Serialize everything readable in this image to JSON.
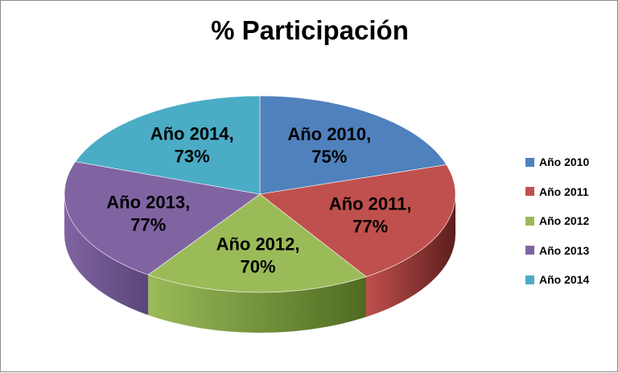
{
  "chart_data": {
    "type": "pie",
    "title": "% Participación",
    "categories": [
      "Año 2010",
      "Año 2011",
      "Año 2012",
      "Año 2013",
      "Año 2014"
    ],
    "values": [
      75,
      77,
      70,
      77,
      73
    ],
    "data_labels": [
      {
        "name": "Año 2010,",
        "value": "75%"
      },
      {
        "name": "Año 2011,",
        "value": "77%"
      },
      {
        "name": "Año 2012,",
        "value": "70%"
      },
      {
        "name": "Año 2013,",
        "value": "77%"
      },
      {
        "name": "Año 2014,",
        "value": "73%"
      }
    ],
    "colors": [
      "#4f81bd",
      "#c0504d",
      "#9bbb59",
      "#8064a2",
      "#4bacc6"
    ],
    "side_colors": [
      "#2f4d73",
      "#5c1e1c",
      "#4f6b22",
      "#5a4679",
      "#2a7d95"
    ],
    "three_d": true,
    "legend_position": "right"
  }
}
